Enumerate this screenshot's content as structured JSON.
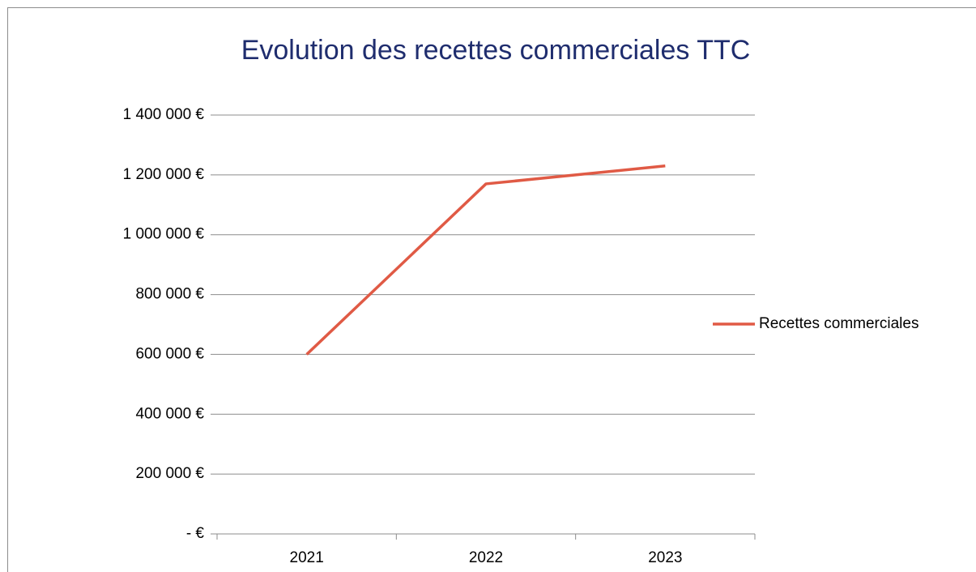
{
  "chart_data": {
    "type": "line",
    "title": "Evolution des recettes commerciales TTC",
    "categories": [
      "2021",
      "2022",
      "2023"
    ],
    "series": [
      {
        "name": "Recettes commerciales",
        "color": "#e05a45",
        "values": [
          600000,
          1170000,
          1230000
        ]
      }
    ],
    "ylim": [
      0,
      1400000
    ],
    "yticks": [
      {
        "value": 0,
        "label": "-   €"
      },
      {
        "value": 200000,
        "label": "200 000 €"
      },
      {
        "value": 400000,
        "label": "400 000 €"
      },
      {
        "value": 600000,
        "label": "600 000 €"
      },
      {
        "value": 800000,
        "label": "800 000 €"
      },
      {
        "value": 1000000,
        "label": "1 000 000 €"
      },
      {
        "value": 1200000,
        "label": "1 200 000 €"
      },
      {
        "value": 1400000,
        "label": "1 400 000 €"
      }
    ],
    "grid": true,
    "legend": "right"
  }
}
